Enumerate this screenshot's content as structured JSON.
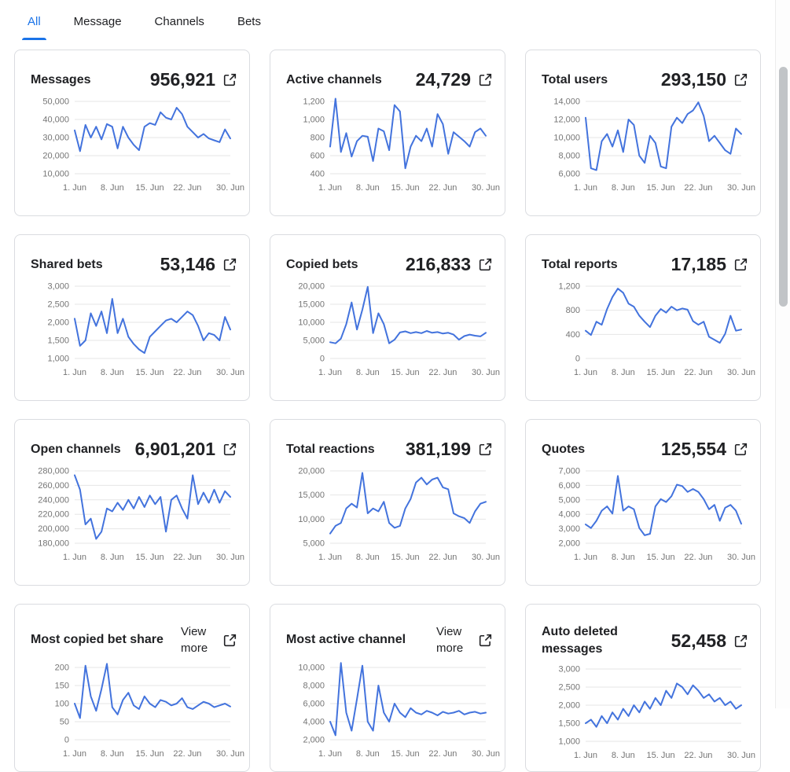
{
  "tabs": [
    {
      "label": "All",
      "active": true
    },
    {
      "label": "Message",
      "active": false
    },
    {
      "label": "Channels",
      "active": false
    },
    {
      "label": "Bets",
      "active": false
    }
  ],
  "colors": {
    "accent": "#1a73e8",
    "line": "#4373dd",
    "grid": "#e6e6e6",
    "axis_text": "#757575"
  },
  "icons": {
    "external_link": "open-in-new"
  },
  "x_axis": {
    "tick_labels": [
      "1. Jun",
      "8. Jun",
      "15. Jun",
      "22. Jun",
      "30. Jun"
    ],
    "tick_days": [
      1,
      8,
      15,
      22,
      30
    ],
    "domain_days": [
      1,
      30
    ]
  },
  "cards": [
    {
      "title": "Messages",
      "value": "956,921",
      "type": "line",
      "y_ticks": [
        "50,000",
        "40,000",
        "30,000",
        "20,000",
        "10,000"
      ],
      "values": [
        34000,
        22500,
        37000,
        30000,
        36000,
        29000,
        37500,
        36000,
        24000,
        36000,
        30000,
        26000,
        23000,
        36000,
        38000,
        37000,
        44000,
        41000,
        40000,
        46500,
        43000,
        36000,
        33000,
        30000,
        32000,
        29500,
        28500,
        27500,
        34500,
        29500
      ]
    },
    {
      "title": "Active channels",
      "value": "24,729",
      "type": "line",
      "y_ticks": [
        "1,200",
        "1,000",
        "800",
        "600",
        "400"
      ],
      "values": [
        700,
        1230,
        640,
        850,
        590,
        760,
        820,
        810,
        540,
        900,
        870,
        660,
        1160,
        1090,
        460,
        700,
        820,
        760,
        900,
        700,
        1060,
        950,
        620,
        860,
        810,
        760,
        700,
        860,
        900,
        820
      ]
    },
    {
      "title": "Total users",
      "value": "293,150",
      "type": "line",
      "y_ticks": [
        "14,000",
        "12,000",
        "10,000",
        "8,000",
        "6,000"
      ],
      "values": [
        12200,
        6600,
        6400,
        9600,
        10400,
        9000,
        10800,
        8400,
        12000,
        11400,
        8000,
        7200,
        10200,
        9400,
        6800,
        6600,
        11200,
        12200,
        11600,
        12600,
        13000,
        13900,
        12400,
        9600,
        10200,
        9400,
        8600,
        8200,
        11000,
        10400
      ]
    },
    {
      "title": "Shared bets",
      "value": "53,146",
      "type": "line",
      "y_ticks": [
        "3,000",
        "2,500",
        "2,000",
        "1,500",
        "1,000"
      ],
      "values": [
        2100,
        1350,
        1500,
        2250,
        1900,
        2300,
        1700,
        2650,
        1700,
        2100,
        1600,
        1400,
        1250,
        1150,
        1600,
        1750,
        1900,
        2050,
        2100,
        2000,
        2150,
        2300,
        2200,
        1900,
        1500,
        1700,
        1650,
        1500,
        2150,
        1800
      ]
    },
    {
      "title": "Copied bets",
      "value": "216,833",
      "type": "line",
      "y_ticks": [
        "20,000",
        "15,000",
        "10,000",
        "5,000",
        "0"
      ],
      "values": [
        4500,
        4200,
        5500,
        9500,
        15500,
        8000,
        13500,
        19800,
        7000,
        12500,
        9500,
        4200,
        5200,
        7200,
        7500,
        7000,
        7300,
        7000,
        7600,
        7100,
        7300,
        6900,
        7100,
        6600,
        5200,
        6200,
        6600,
        6300,
        6100,
        7100
      ]
    },
    {
      "title": "Total reports",
      "value": "17,185",
      "type": "line",
      "y_ticks": [
        "1,200",
        "800",
        "400",
        "0"
      ],
      "values": [
        460,
        390,
        610,
        560,
        820,
        1020,
        1160,
        1090,
        910,
        860,
        710,
        610,
        520,
        710,
        820,
        760,
        860,
        800,
        830,
        810,
        620,
        560,
        610,
        360,
        310,
        260,
        410,
        710,
        460,
        480
      ]
    },
    {
      "title": "Open channels",
      "value": "6,901,201",
      "type": "line",
      "y_ticks": [
        "280,000",
        "260,000",
        "240,000",
        "220,000",
        "200,000",
        "180,000"
      ],
      "values": [
        274000,
        254000,
        206000,
        214000,
        186000,
        196000,
        228000,
        224000,
        236000,
        226000,
        240000,
        228000,
        244000,
        230000,
        246000,
        234000,
        244000,
        196000,
        240000,
        246000,
        228000,
        214000,
        274000,
        234000,
        250000,
        236000,
        254000,
        236000,
        252000,
        244000
      ]
    },
    {
      "title": "Total reactions",
      "value": "381,199",
      "type": "line",
      "y_ticks": [
        "20,000",
        "15,000",
        "10,000",
        "5,000"
      ],
      "values": [
        7000,
        8600,
        9200,
        12200,
        13200,
        12400,
        19600,
        11200,
        12200,
        11600,
        13600,
        9200,
        8200,
        8600,
        12200,
        14200,
        17600,
        18600,
        17200,
        18200,
        18600,
        16600,
        16200,
        11200,
        10600,
        10200,
        9200,
        11600,
        13200,
        13600
      ]
    },
    {
      "title": "Quotes",
      "value": "125,554",
      "type": "line",
      "y_ticks": [
        "7,000",
        "6,000",
        "5,000",
        "4,000",
        "3,000",
        "2,000"
      ],
      "values": [
        3300,
        3050,
        3550,
        4250,
        4550,
        4050,
        6650,
        4250,
        4550,
        4350,
        3050,
        2550,
        2650,
        4550,
        5050,
        4850,
        5250,
        6050,
        5950,
        5550,
        5750,
        5550,
        5050,
        4350,
        4650,
        3550,
        4450,
        4650,
        4250,
        3350
      ]
    },
    {
      "title": "Most copied bet share",
      "action": "View more",
      "type": "line",
      "y_ticks": [
        "200",
        "150",
        "100",
        "50",
        "0"
      ],
      "values": [
        100,
        60,
        205,
        120,
        80,
        140,
        210,
        90,
        70,
        110,
        130,
        95,
        85,
        120,
        100,
        90,
        110,
        105,
        95,
        100,
        115,
        90,
        85,
        95,
        105,
        100,
        90,
        95,
        100,
        92
      ]
    },
    {
      "title": "Most active channel",
      "action": "View more",
      "type": "line",
      "y_ticks": [
        "10,000",
        "8,000",
        "6,000",
        "4,000",
        "2,000"
      ],
      "values": [
        4000,
        2500,
        10500,
        5000,
        3000,
        6500,
        10200,
        4000,
        3000,
        8000,
        5000,
        4000,
        6000,
        5000,
        4500,
        5500,
        5000,
        4800,
        5200,
        5000,
        4700,
        5100,
        4900,
        5000,
        5200,
        4800,
        5000,
        5100,
        4900,
        5000
      ]
    },
    {
      "title": "Auto deleted messages",
      "value": "52,458",
      "type": "line",
      "y_ticks": [
        "3,000",
        "2,500",
        "2,000",
        "1,500",
        "1,000"
      ],
      "values": [
        1500,
        1600,
        1400,
        1700,
        1500,
        1800,
        1600,
        1900,
        1700,
        2000,
        1800,
        2100,
        1900,
        2200,
        2000,
        2400,
        2200,
        2600,
        2500,
        2300,
        2550,
        2400,
        2200,
        2300,
        2100,
        2200,
        2000,
        2100,
        1900,
        2000
      ]
    }
  ]
}
